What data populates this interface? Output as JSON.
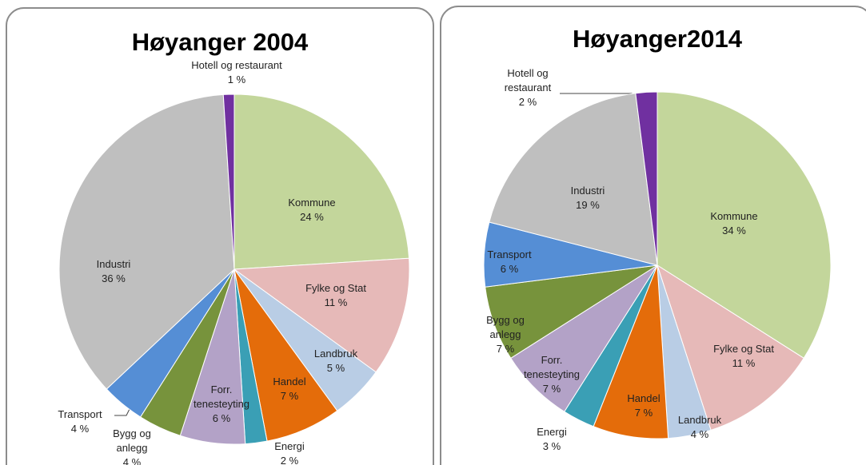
{
  "chart_data": [
    {
      "type": "pie",
      "title": "Høyanger 2004",
      "categories": [
        "Kommune",
        "Fylke og Stat",
        "Landbruk",
        "Handel",
        "Energi",
        "Forr.\ntenesteyting",
        "Bygg og\nanlegg",
        "Transport",
        "Industri",
        "Hotell og restaurant"
      ],
      "values": [
        24,
        11,
        5,
        7,
        2,
        6,
        4,
        4,
        36,
        1
      ],
      "value_labels": [
        "24 %",
        "11 %",
        "5 %",
        "7 %",
        "2 %",
        "6 %",
        "4 %",
        "4 %",
        "36 %",
        "1 %"
      ],
      "colors": [
        "#c3d69b",
        "#e6b9b8",
        "#b9cde5",
        "#e46c0a",
        "#3a9fb5",
        "#b3a2c7",
        "#77933c",
        "#558ed5",
        "#bfbfbf",
        "#7030a0"
      ]
    },
    {
      "type": "pie",
      "title": "Høyanger2014",
      "categories": [
        "Kommune",
        "Fylke og Stat",
        "Landbruk",
        "Handel",
        "Energi",
        "Forr.\ntenesteyting",
        "Bygg og\nanlegg",
        "Transport",
        "Industri",
        "Hotell og\nrestaurant"
      ],
      "values": [
        34,
        11,
        4,
        7,
        3,
        7,
        7,
        6,
        19,
        2
      ],
      "value_labels": [
        "34 %",
        "11 %",
        "4 %",
        "7 %",
        "3 %",
        "7 %",
        "7 %",
        "6 %",
        "19 %",
        "2 %"
      ],
      "colors": [
        "#c3d69b",
        "#e6b9b8",
        "#b9cde5",
        "#e46c0a",
        "#3a9fb5",
        "#b3a2c7",
        "#77933c",
        "#558ed5",
        "#bfbfbf",
        "#7030a0"
      ]
    }
  ]
}
